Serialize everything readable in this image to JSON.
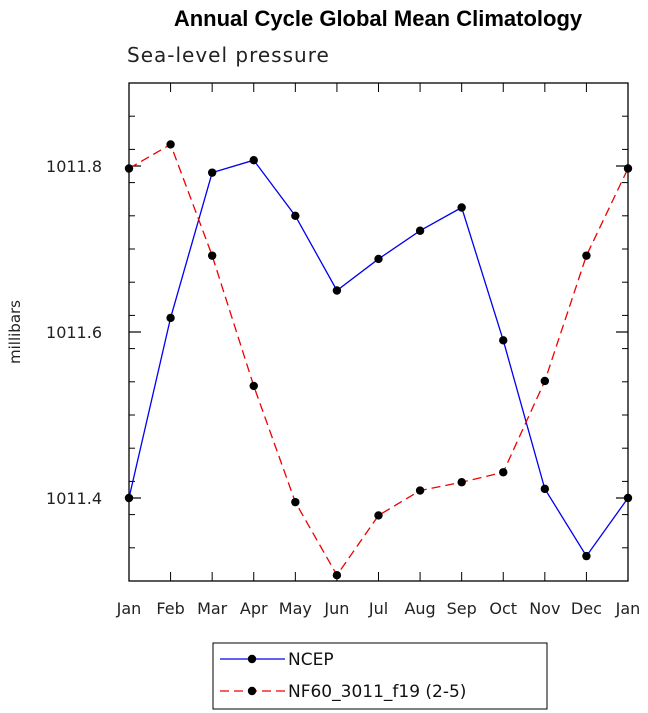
{
  "chart_data": {
    "type": "line",
    "title": "Annual Cycle Global Mean Climatology",
    "subtitle": "Sea-level pressure",
    "xlabel": "",
    "ylabel": "millibars",
    "categories": [
      "Jan",
      "Feb",
      "Mar",
      "Apr",
      "May",
      "Jun",
      "Jul",
      "Aug",
      "Sep",
      "Oct",
      "Nov",
      "Dec",
      "Jan"
    ],
    "ylim": [
      1011.3,
      1011.9
    ],
    "yticks": [
      1011.4,
      1011.6,
      1011.8
    ],
    "ytick_labels": [
      "1011.4",
      "1011.6",
      "1011.8"
    ],
    "minor_ystep": 0.04,
    "grid": false,
    "legend_placement": "bottom",
    "series": [
      {
        "name": "NCEP",
        "color": "#0000ee",
        "dash": "solid",
        "values": [
          1011.4,
          1011.617,
          1011.792,
          1011.807,
          1011.74,
          1011.65,
          1011.688,
          1011.722,
          1011.75,
          1011.59,
          1011.411,
          1011.33,
          1011.4
        ]
      },
      {
        "name": "NF60_3011_f19 (2-5)",
        "color": "#ee0000",
        "dash": "dashed",
        "values": [
          1011.797,
          1011.826,
          1011.692,
          1011.535,
          1011.395,
          1011.307,
          1011.379,
          1011.409,
          1011.419,
          1011.431,
          1011.541,
          1011.692,
          1011.797
        ]
      }
    ]
  }
}
